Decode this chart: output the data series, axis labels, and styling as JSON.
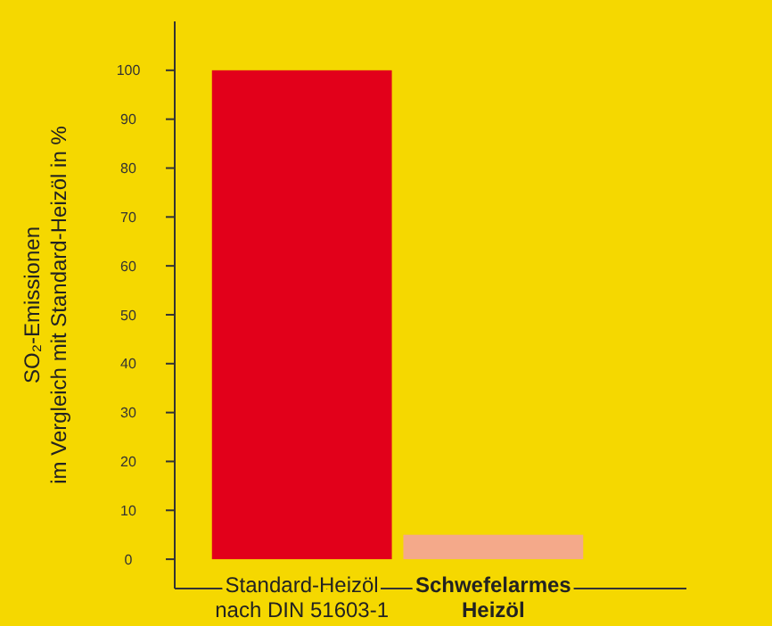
{
  "chart_data": {
    "type": "bar",
    "ylabel": "SO₂-Emissionen\nim Vergleich mit Standard-Heizöl in %",
    "categories": [
      "Standard-Heizöl\nnach DIN 51603-1",
      "Schwefelarmes\nHeizöl"
    ],
    "values": [
      100,
      5
    ],
    "colors": [
      "#e2001a",
      "#f4a98a"
    ],
    "ylim": [
      -6,
      110
    ],
    "yticks": [
      0,
      10,
      20,
      30,
      40,
      50,
      60,
      70,
      80,
      90,
      100
    ],
    "grid": false
  }
}
